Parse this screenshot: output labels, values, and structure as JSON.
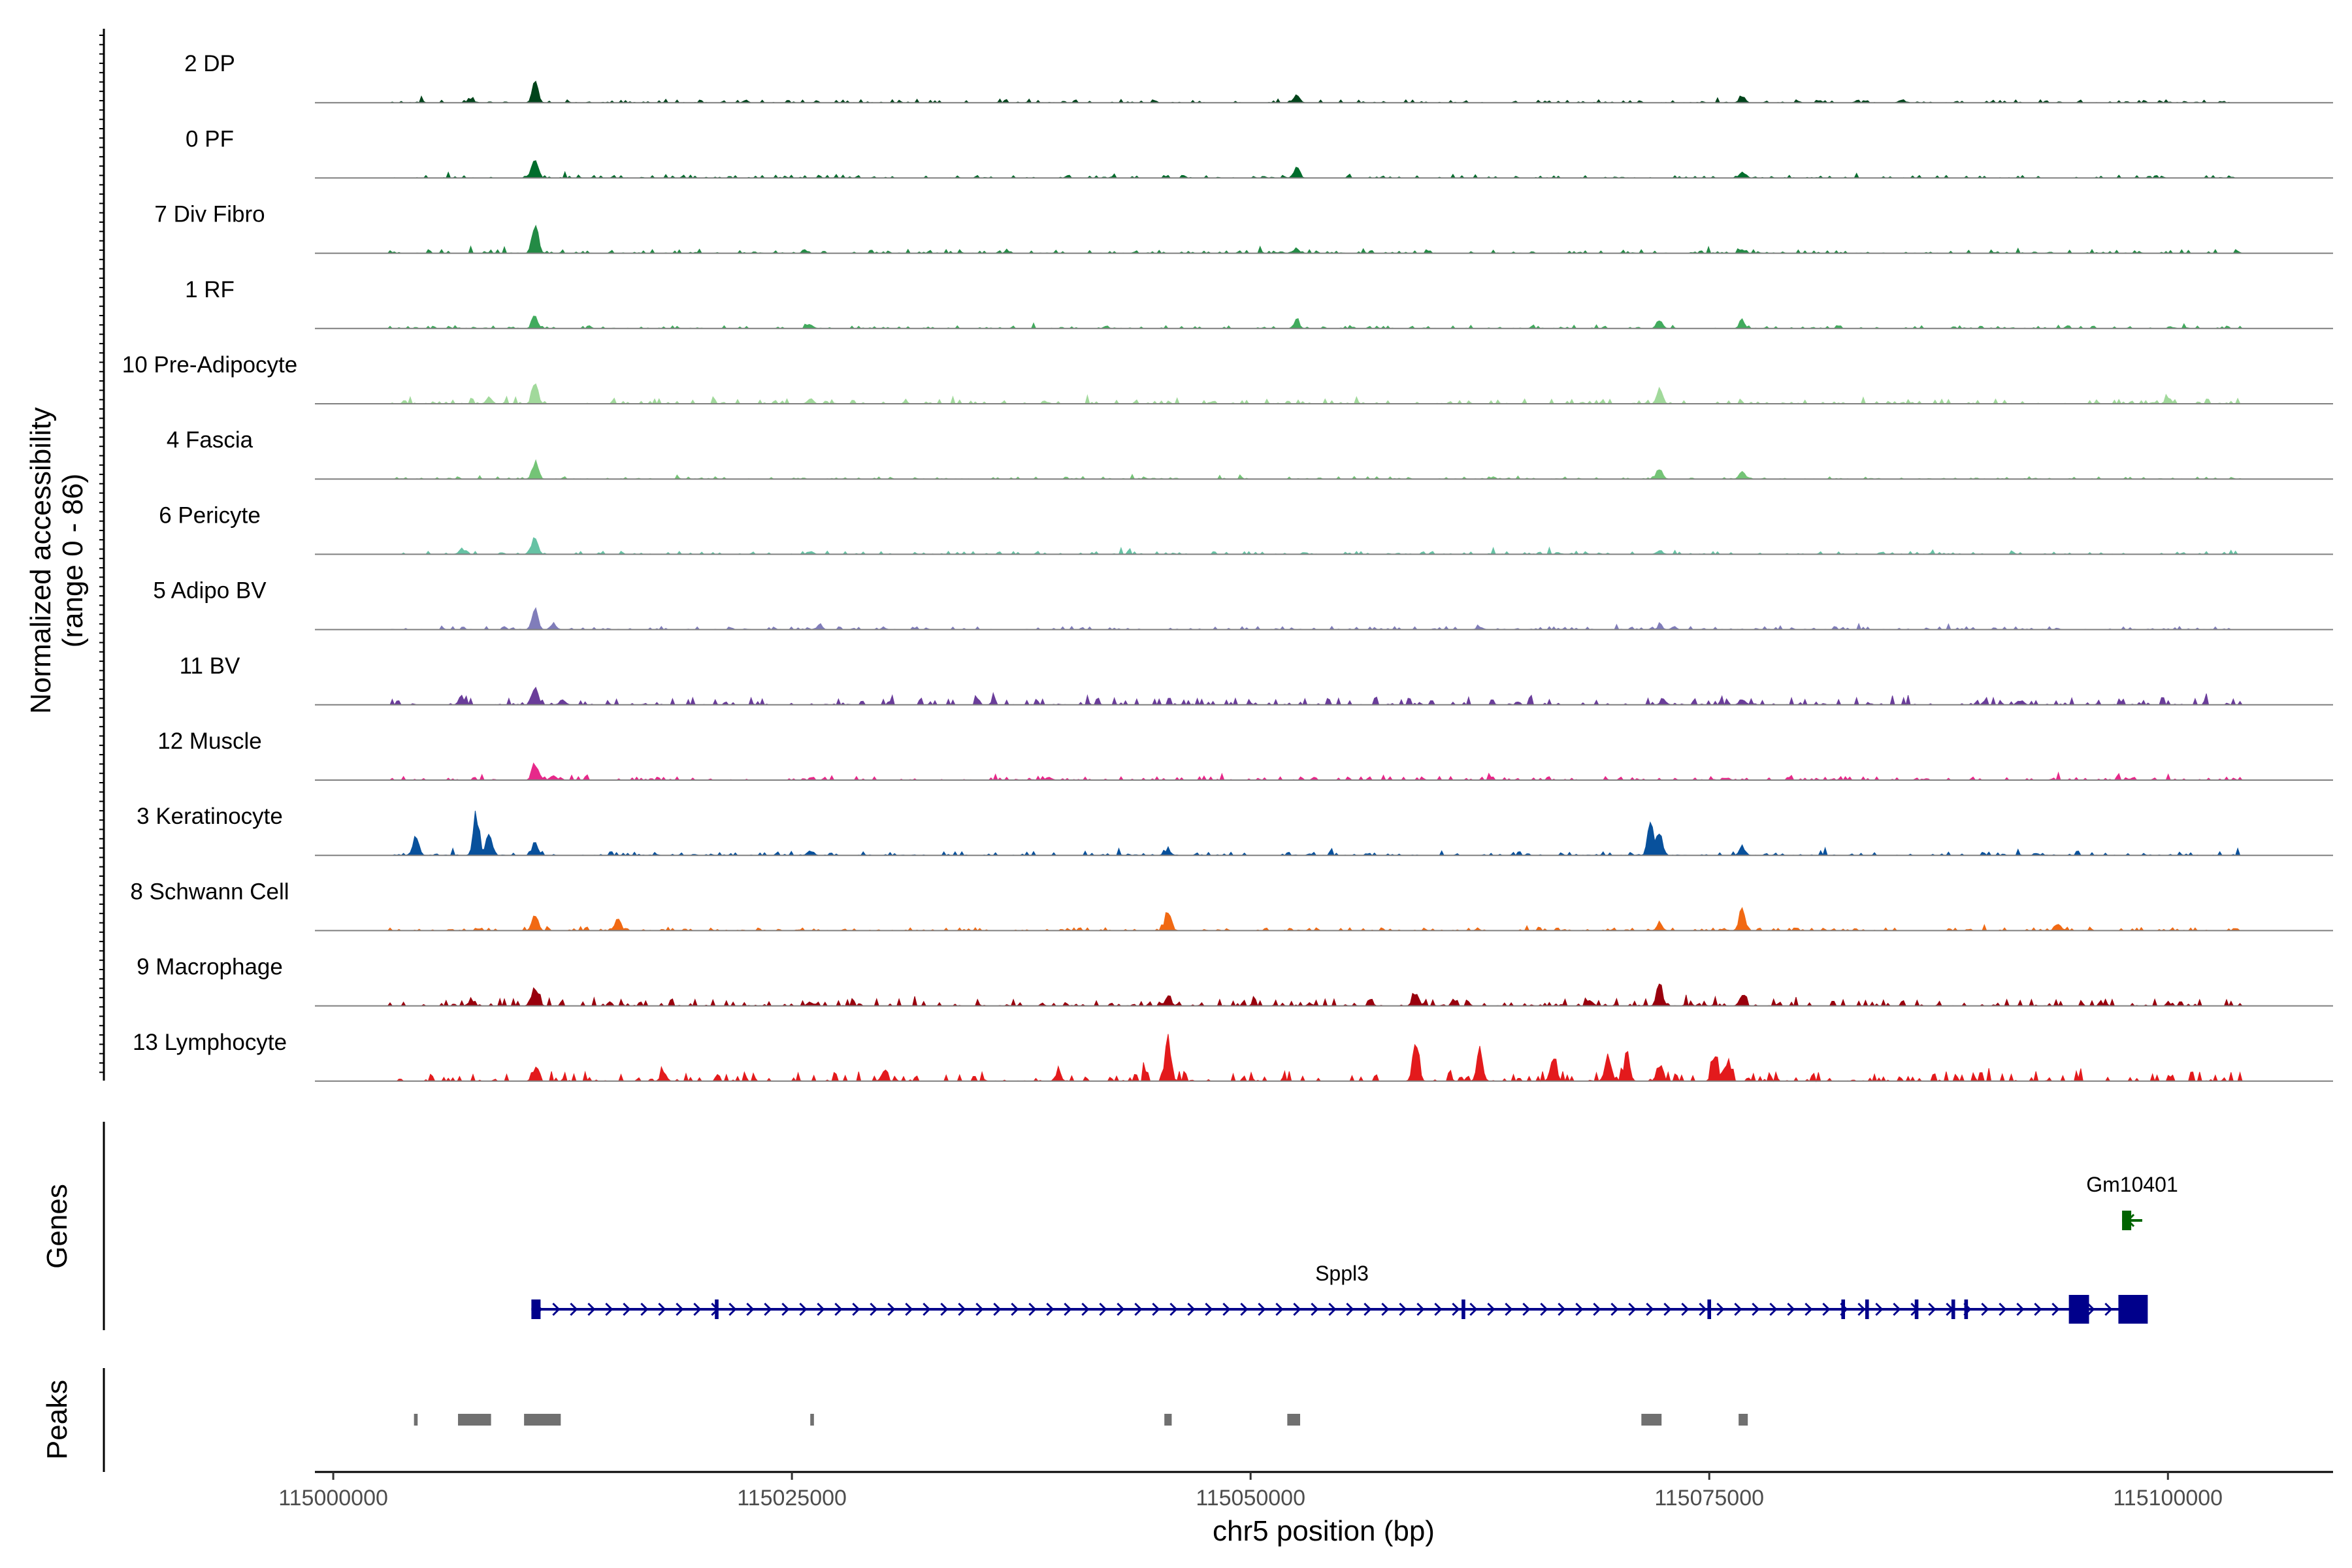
{
  "chart_data": {
    "type": "area",
    "ylabel_line1": "Normalized accessibility",
    "ylabel_line2": "(range 0 - 86)",
    "y_range": [
      0,
      86
    ],
    "xlabel": "chr5 position (bp)",
    "xlim": [
      114999000,
      115109000
    ],
    "x_ticks": [
      115000000,
      115025000,
      115050000,
      115075000,
      115100000
    ],
    "x_tick_labels": [
      "115000000",
      "115025000",
      "115050000",
      "115075000",
      "115100000"
    ],
    "panel_labels": {
      "genes": "Genes",
      "peaks": "Peaks"
    },
    "tracks": [
      {
        "name": "2 DP",
        "color": "#00441b",
        "peaks": [
          [
            115011000,
            20
          ],
          [
            115007500,
            3
          ],
          [
            115052500,
            8
          ],
          [
            115076800,
            6
          ],
          [
            115085500,
            3
          ]
        ],
        "noise": 1.2,
        "seed": 11
      },
      {
        "name": "0 PF",
        "color": "#006d2c",
        "peaks": [
          [
            115011000,
            18
          ],
          [
            115052500,
            10
          ],
          [
            115076800,
            5
          ]
        ],
        "noise": 1.2,
        "seed": 12
      },
      {
        "name": "7 Div Fibro",
        "color": "#238b45",
        "peaks": [
          [
            115011000,
            32
          ],
          [
            115052500,
            4
          ],
          [
            115076800,
            4
          ]
        ],
        "noise": 1.5,
        "seed": 13
      },
      {
        "name": "1 RF",
        "color": "#41ab5d",
        "peaks": [
          [
            115011000,
            12
          ],
          [
            115026000,
            4
          ],
          [
            115052500,
            8
          ],
          [
            115072300,
            9
          ],
          [
            115076800,
            6
          ]
        ],
        "noise": 1.2,
        "seed": 14
      },
      {
        "name": "10 Pre-Adipocyte",
        "color": "#a1d99b",
        "peaks": [
          [
            115011000,
            22
          ],
          [
            115008500,
            6
          ],
          [
            115026000,
            5
          ],
          [
            115072300,
            12
          ],
          [
            115100000,
            6
          ]
        ],
        "noise": 2.0,
        "seed": 15
      },
      {
        "name": "4 Fascia",
        "color": "#74c476",
        "peaks": [
          [
            115011000,
            16
          ],
          [
            115072300,
            11
          ],
          [
            115076800,
            7
          ]
        ],
        "noise": 1.0,
        "seed": 16
      },
      {
        "name": "6 Pericyte",
        "color": "#66c2a4",
        "peaks": [
          [
            115011000,
            18
          ],
          [
            115007000,
            5
          ],
          [
            115026000,
            3
          ],
          [
            115072300,
            4
          ]
        ],
        "noise": 1.3,
        "seed": 17
      },
      {
        "name": "5 Adipo BV",
        "color": "#807dba",
        "peaks": [
          [
            115011000,
            22
          ],
          [
            115012000,
            6
          ],
          [
            115026500,
            4
          ],
          [
            115062500,
            3
          ],
          [
            115072300,
            3
          ]
        ],
        "noise": 1.3,
        "seed": 18
      },
      {
        "name": "11 BV",
        "color": "#6a3d9a",
        "peaks": [
          [
            115011000,
            16
          ],
          [
            115007000,
            6
          ],
          [
            115012500,
            5
          ],
          [
            115072500,
            5
          ],
          [
            115076800,
            6
          ],
          [
            115092000,
            4
          ]
        ],
        "noise": 3.0,
        "seed": 19
      },
      {
        "name": "12 Muscle",
        "color": "#e7298a",
        "peaks": [
          [
            115011000,
            16
          ],
          [
            115012000,
            5
          ],
          [
            115039000,
            3
          ]
        ],
        "noise": 1.5,
        "seed": 20
      },
      {
        "name": "3 Keratinocyte",
        "color": "#08519c",
        "peaks": [
          [
            115004500,
            18
          ],
          [
            115007800,
            40
          ],
          [
            115008500,
            24
          ],
          [
            115011000,
            12
          ],
          [
            115026000,
            4
          ],
          [
            115045500,
            5
          ],
          [
            115071800,
            30
          ],
          [
            115072300,
            24
          ],
          [
            115076800,
            8
          ]
        ],
        "noise": 1.5,
        "seed": 21
      },
      {
        "name": "8 Schwann Cell",
        "color": "#f16913",
        "peaks": [
          [
            115011000,
            16
          ],
          [
            115015500,
            12
          ],
          [
            115045500,
            20
          ],
          [
            115072300,
            6
          ],
          [
            115076800,
            22
          ],
          [
            115094000,
            8
          ]
        ],
        "noise": 1.2,
        "seed": 22
      },
      {
        "name": "9 Macrophage",
        "color": "#99000d",
        "peaks": [
          [
            115011000,
            18
          ],
          [
            115007500,
            5
          ],
          [
            115026000,
            4
          ],
          [
            115045500,
            10
          ],
          [
            115059000,
            12
          ],
          [
            115072300,
            22
          ],
          [
            115076800,
            9
          ],
          [
            115068500,
            6
          ]
        ],
        "noise": 3.0,
        "seed": 23
      },
      {
        "name": "13 Lymphocyte",
        "color": "#e31a1c",
        "peaks": [
          [
            115045500,
            42
          ],
          [
            115059000,
            40
          ],
          [
            115062500,
            30
          ],
          [
            115066500,
            28
          ],
          [
            115069500,
            26
          ],
          [
            115070500,
            24
          ],
          [
            115072300,
            16
          ],
          [
            115075300,
            22
          ],
          [
            115076000,
            20
          ],
          [
            115011000,
            12
          ],
          [
            115018000,
            10
          ],
          [
            115030000,
            8
          ],
          [
            115039500,
            7
          ]
        ],
        "noise": 4.0,
        "seed": 24
      }
    ],
    "genes": [
      {
        "name": "Sppl3",
        "strand": "+",
        "color": "#00008b",
        "start": 115010800,
        "end": 115098400,
        "exons": [
          [
            115010800,
            115011300
          ],
          [
            115020800,
            115021000
          ],
          [
            115061500,
            115061700
          ],
          [
            115074900,
            115075100
          ],
          [
            115082200,
            115082400
          ],
          [
            115083500,
            115083700
          ],
          [
            115086200,
            115086400
          ],
          [
            115088200,
            115088400
          ],
          [
            115088900,
            115089100
          ],
          [
            115094600,
            115095700
          ],
          [
            115097300,
            115098900
          ]
        ]
      },
      {
        "name": "Gm10401",
        "strand": "-",
        "color": "#006400",
        "start": 115097500,
        "end": 115098600,
        "exons": [
          [
            115097500,
            115098000
          ]
        ]
      }
    ],
    "peaks_track": {
      "color": "#707070",
      "regions": [
        [
          115004400,
          115004600
        ],
        [
          115006800,
          115008600
        ],
        [
          115010400,
          115012400
        ],
        [
          115026000,
          115026200
        ],
        [
          115045300,
          115045700
        ],
        [
          115052000,
          115052700
        ],
        [
          115071300,
          115072400
        ],
        [
          115076600,
          115077100
        ]
      ]
    }
  }
}
